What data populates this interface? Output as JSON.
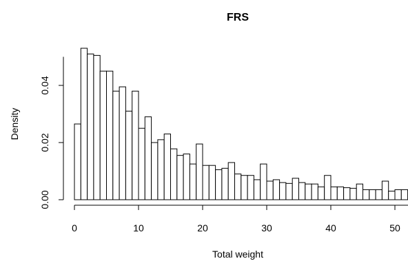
{
  "chart_data": {
    "type": "bar",
    "title": "FRS",
    "xlabel": "Total weight",
    "ylabel": "Density",
    "xlim": [
      0,
      52
    ],
    "ylim": [
      0,
      0.055
    ],
    "bin_width": 1,
    "x_ticks": [
      0,
      10,
      20,
      30,
      40,
      50
    ],
    "y_ticks": [
      0.0,
      0.02,
      0.04
    ],
    "y_tick_labels": [
      "0.00",
      "0.02",
      "0.04"
    ],
    "values": [
      0.0265,
      0.053,
      0.051,
      0.0505,
      0.045,
      0.045,
      0.038,
      0.0395,
      0.031,
      0.038,
      0.025,
      0.029,
      0.02,
      0.021,
      0.023,
      0.0178,
      0.0155,
      0.016,
      0.0125,
      0.0195,
      0.012,
      0.012,
      0.0105,
      0.011,
      0.013,
      0.009,
      0.0085,
      0.0085,
      0.007,
      0.0125,
      0.0065,
      0.007,
      0.006,
      0.0057,
      0.0075,
      0.006,
      0.0055,
      0.0055,
      0.0045,
      0.0085,
      0.0045,
      0.0045,
      0.0042,
      0.004,
      0.0055,
      0.0035,
      0.0035,
      0.0035,
      0.0065,
      0.003,
      0.0035,
      0.0035
    ]
  }
}
